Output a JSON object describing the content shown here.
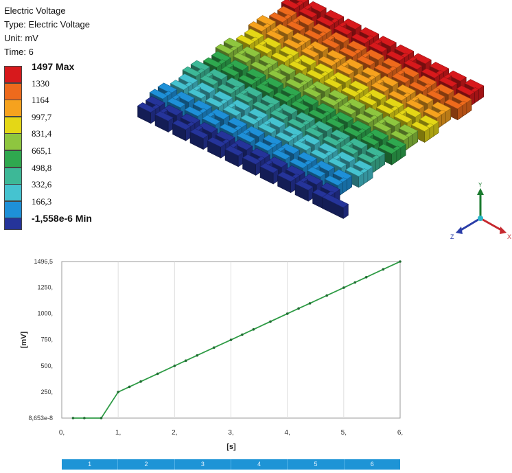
{
  "result_info": {
    "title": "Electric Voltage",
    "type_line": "Type: Electric Voltage",
    "unit_line": "Unit: mV",
    "time_line": "Time: 6"
  },
  "legend": [
    {
      "label": "1497 Max",
      "color": "#d7191c",
      "bold": true
    },
    {
      "label": "1330",
      "color": "#ee6a1c",
      "bold": false
    },
    {
      "label": "1164",
      "color": "#f6a21e",
      "bold": false
    },
    {
      "label": "997,7",
      "color": "#e4d716",
      "bold": false
    },
    {
      "label": "831,4",
      "color": "#8ec63f",
      "bold": false
    },
    {
      "label": "665,1",
      "color": "#2fa84f",
      "bold": false
    },
    {
      "label": "498,8",
      "color": "#3db897",
      "bold": false
    },
    {
      "label": "332,6",
      "color": "#45c3d0",
      "bold": false
    },
    {
      "label": "166,3",
      "color": "#1e90d8",
      "bold": false
    },
    {
      "label": "-1,558e-6 Min",
      "color": "#25349a",
      "bold": true
    }
  ],
  "triad": {
    "x_label": "X",
    "y_label": "Y",
    "z_label": "Z"
  },
  "chart_data": {
    "type": "line",
    "xlabel": "[s]",
    "ylabel": "[mV]",
    "xlim": [
      0,
      6
    ],
    "ylim": [
      0,
      1496.5
    ],
    "x_ticks": [
      {
        "value": 0,
        "label": "0,"
      },
      {
        "value": 1,
        "label": "1,"
      },
      {
        "value": 2,
        "label": "2,"
      },
      {
        "value": 3,
        "label": "3,"
      },
      {
        "value": 4,
        "label": "4,"
      },
      {
        "value": 5,
        "label": "5,"
      },
      {
        "value": 6,
        "label": "6,"
      }
    ],
    "y_ticks": [
      {
        "value": 0,
        "label": "8,653e-8"
      },
      {
        "value": 250,
        "label": "250,"
      },
      {
        "value": 500,
        "label": "500,"
      },
      {
        "value": 750,
        "label": "750,"
      },
      {
        "value": 1000,
        "label": "1000,"
      },
      {
        "value": 1250,
        "label": "1250,"
      },
      {
        "value": 1496.5,
        "label": "1496,5"
      }
    ],
    "line_color": "#2e9b45",
    "grid": true,
    "series": [
      {
        "x": [
          0.2,
          0.4,
          0.7,
          1.0,
          1.2,
          1.4,
          1.7,
          2.0,
          2.2,
          2.4,
          2.7,
          3.0,
          3.2,
          3.4,
          3.7,
          4.0,
          4.2,
          4.4,
          4.7,
          5.0,
          5.2,
          5.4,
          5.7,
          6.0
        ],
        "y": [
          0,
          0,
          0,
          249,
          299,
          349,
          424,
          499,
          549,
          599,
          674,
          748,
          798,
          848,
          923,
          998,
          1048,
          1097,
          1172,
          1247,
          1297,
          1347,
          1422,
          1496.5
        ]
      }
    ]
  },
  "timeline": {
    "segments": [
      "1",
      "2",
      "3",
      "4",
      "5",
      "6"
    ],
    "color": "#1e94d6"
  }
}
